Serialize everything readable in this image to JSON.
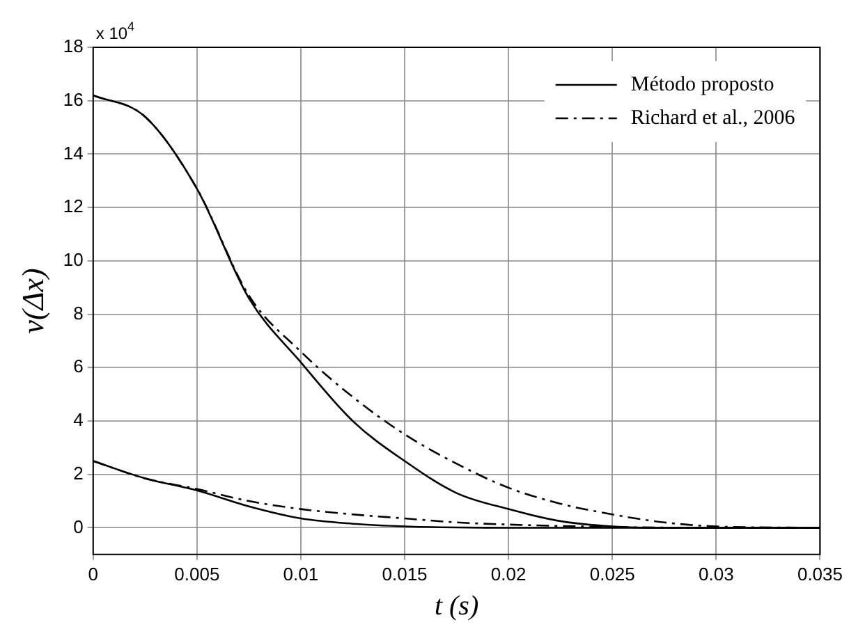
{
  "chart_data": {
    "type": "line",
    "xlabel": "t (s)",
    "ylabel": "v(Δx)",
    "annotations": [
      "x 10$^{4}$"
    ],
    "xlim": [
      0,
      0.035
    ],
    "xticks": [
      0,
      0.005,
      0.01,
      0.015,
      0.02,
      0.025,
      0.03,
      0.035
    ],
    "ylim": [
      -1,
      18
    ],
    "yticks": [
      0,
      2,
      4,
      6,
      8,
      10,
      12,
      14,
      16,
      18
    ],
    "grid": true,
    "legend": "top right",
    "marker": "none",
    "series": [
      {
        "name": "Método proposto",
        "color": "#000000",
        "line_style": "solid",
        "x": [
          0,
          0.0025,
          0.005,
          0.0075,
          0.01,
          0.0125,
          0.015,
          0.0175,
          0.02,
          0.0225,
          0.025,
          0.0275,
          0.03,
          0.035
        ],
        "values": [
          16.2,
          15.4,
          12.7,
          8.6,
          6.2,
          4.0,
          2.5,
          1.3,
          0.7,
          0.25,
          0.05,
          0,
          0,
          0
        ]
      },
      {
        "name": "Richard et al., 2006",
        "color": "#000000",
        "line_style": "dashed",
        "x": [
          0,
          0.0025,
          0.005,
          0.0075,
          0.01,
          0.0125,
          0.015,
          0.0175,
          0.02,
          0.0225,
          0.025,
          0.0275,
          0.03,
          0.035
        ],
        "values": [
          16.2,
          15.4,
          12.7,
          8.7,
          6.6,
          4.9,
          3.5,
          2.4,
          1.5,
          0.9,
          0.5,
          0.2,
          0.05,
          0
        ]
      },
      {
        "color": "#000000",
        "line_style": "solid",
        "x": [
          0,
          0.0025,
          0.005,
          0.0075,
          0.01,
          0.0125,
          0.015,
          0.0175,
          0.02,
          0.025,
          0.03,
          0.035
        ],
        "values": [
          2.5,
          1.85,
          1.4,
          0.8,
          0.35,
          0.15,
          0.05,
          0.01,
          0,
          0,
          0,
          0
        ]
      },
      {
        "color": "#000000",
        "line_style": "dashed",
        "x": [
          0,
          0.0025,
          0.005,
          0.0075,
          0.01,
          0.0125,
          0.015,
          0.0175,
          0.02,
          0.025,
          0.03,
          0.035
        ],
        "values": [
          2.5,
          1.85,
          1.45,
          1.0,
          0.7,
          0.5,
          0.35,
          0.2,
          0.12,
          0.03,
          0,
          0
        ]
      }
    ]
  }
}
